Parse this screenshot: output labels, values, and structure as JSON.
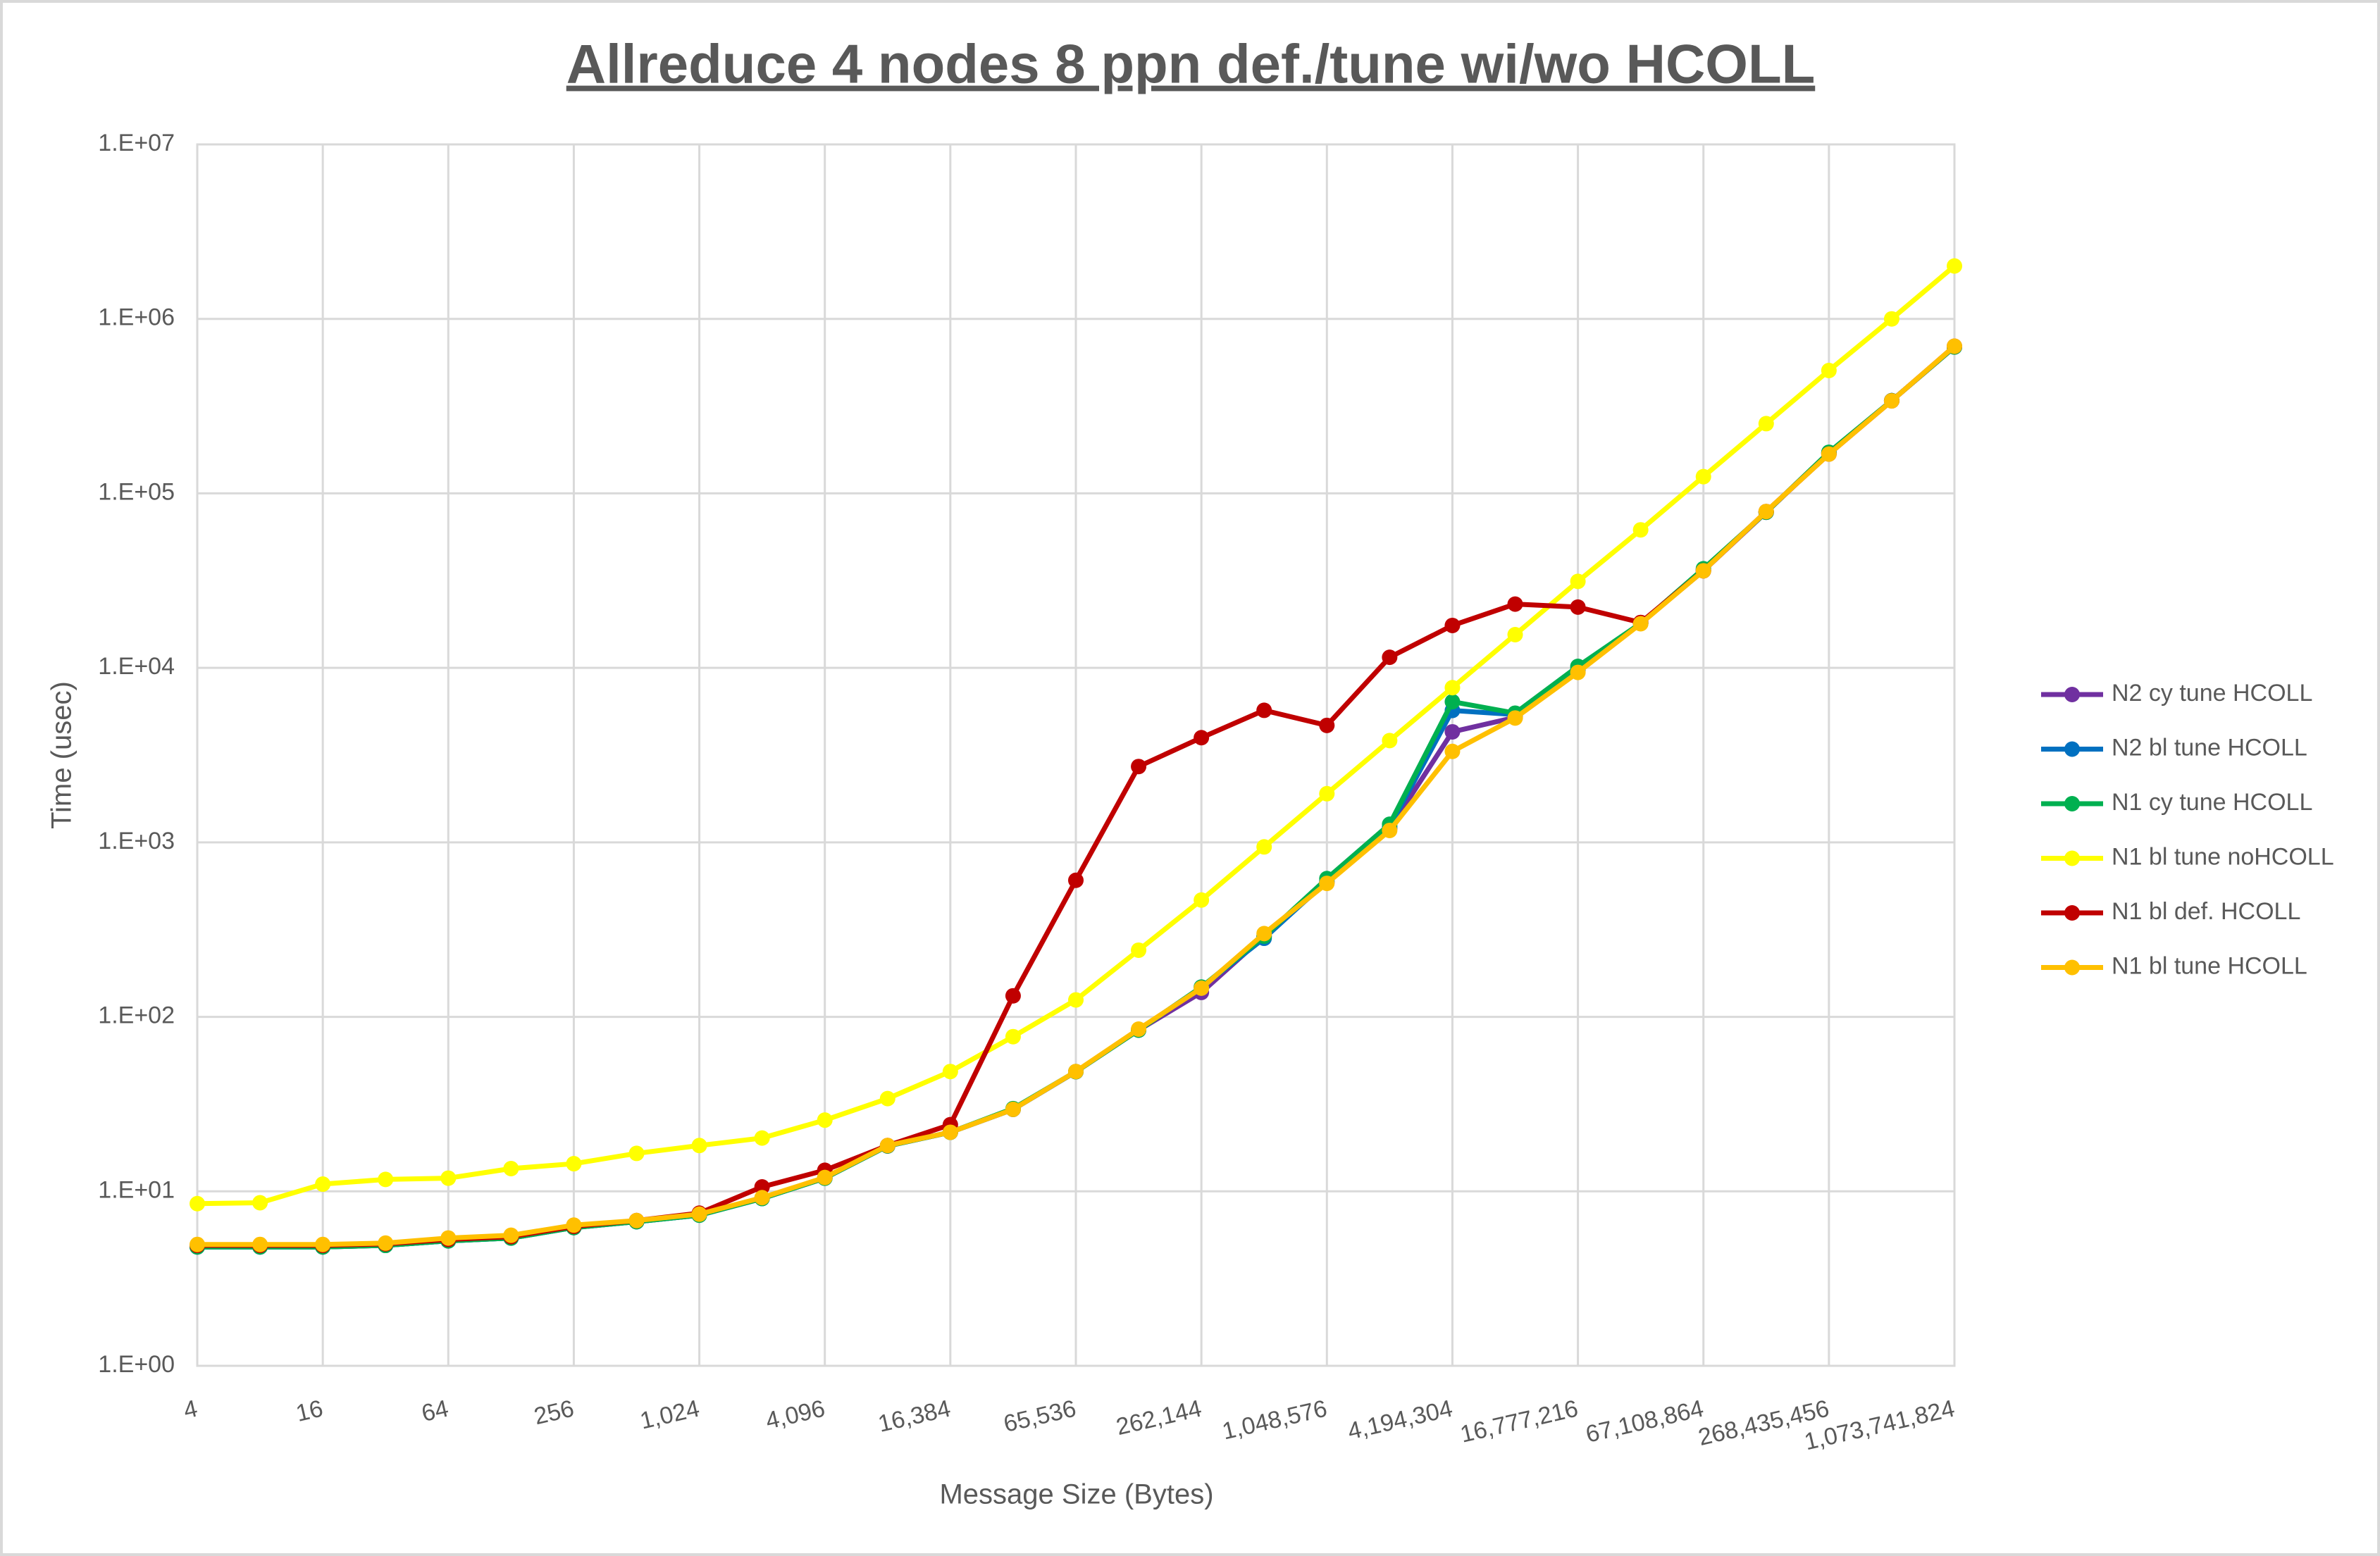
{
  "chart_data": {
    "type": "line",
    "title": "Allreduce 4 nodes 8 ppn def./tune wi/wo HCOLL",
    "x_label": "Message Size (Bytes)",
    "y_label": "Time (usec)",
    "categories": [
      "4",
      null,
      "16",
      null,
      "64",
      null,
      "256",
      null,
      "1,024",
      null,
      "4,096",
      null,
      "16,384",
      null,
      "65,536",
      null,
      "262,144",
      null,
      "1,048,576",
      null,
      "4,194,304",
      null,
      "16,777,216",
      null,
      "67,108,864",
      null,
      "268,435,456",
      null,
      "1,073,741,824"
    ],
    "y_scale": "log",
    "ylim": [
      1,
      10000000
    ],
    "yticks": [
      {
        "value": 1,
        "label": "1.E+00"
      },
      {
        "value": 10,
        "label": "1.E+01"
      },
      {
        "value": 100,
        "label": "1.E+02"
      },
      {
        "value": 1000,
        "label": "1.E+03"
      },
      {
        "value": 10000,
        "label": "1.E+04"
      },
      {
        "value": 100000,
        "label": "1.E+05"
      },
      {
        "value": 1000000,
        "label": "1.E+06"
      },
      {
        "value": 10000000,
        "label": "1.E+07"
      }
    ],
    "grid": true,
    "legend": "right",
    "series": [
      {
        "name": "N2 cy tune HCOLL",
        "color": "#7030a0",
        "values": [
          4.8,
          4.8,
          4.8,
          4.9,
          5.2,
          5.4,
          6.2,
          6.7,
          7.3,
          9.1,
          11.9,
          18.2,
          21.8,
          29.5,
          48.5,
          84,
          138,
          290,
          590,
          1200,
          4300,
          5200,
          9600,
          18000,
          36000,
          78000,
          170000,
          340000,
          690000
        ]
      },
      {
        "name": "N2 bl tune HCOLL",
        "color": "#0070c0",
        "values": [
          4.8,
          4.8,
          4.8,
          4.9,
          5.2,
          5.4,
          6.2,
          6.7,
          7.3,
          9.1,
          11.9,
          18.2,
          21.8,
          29.5,
          48.5,
          84,
          148,
          282,
          600,
          1230,
          5700,
          5400,
          9800,
          18000,
          36500,
          78000,
          171000,
          340000,
          690000
        ]
      },
      {
        "name": "N1 cy tune HCOLL",
        "color": "#00b050",
        "values": [
          4.8,
          4.8,
          4.8,
          4.9,
          5.2,
          5.4,
          6.2,
          6.7,
          7.3,
          9.1,
          11.9,
          18.2,
          21.8,
          29.8,
          48.5,
          84,
          148,
          290,
          620,
          1270,
          6400,
          5500,
          10200,
          18000,
          37000,
          78000,
          172000,
          340000,
          690000
        ]
      },
      {
        "name": "N1 bl tune noHCOLL",
        "color": "#ffff00",
        "values": [
          8.5,
          8.6,
          11,
          11.7,
          11.9,
          13.5,
          14.4,
          16.5,
          18.3,
          20.2,
          25.6,
          34,
          48.6,
          77,
          125,
          241,
          467,
          942,
          1900,
          3830,
          7700,
          15500,
          31300,
          61800,
          124700,
          251000,
          506000,
          1000000,
          2010000
        ]
      },
      {
        "name": "N1 bl def. HCOLL",
        "color": "#c00000",
        "values": [
          4.9,
          4.9,
          4.9,
          5,
          5.3,
          5.5,
          6.3,
          6.8,
          7.5,
          10.6,
          13.2,
          18.3,
          24.1,
          132,
          606,
          2720,
          3980,
          5710,
          4680,
          11500,
          17500,
          23200,
          22300,
          18200,
          36000,
          78700,
          168000,
          339000,
          697000
        ]
      },
      {
        "name": "N1 bl tune HCOLL",
        "color": "#ffc000",
        "values": [
          4.96,
          4.96,
          4.96,
          5.05,
          5.4,
          5.6,
          6.4,
          6.8,
          7.4,
          9.2,
          12,
          18.3,
          21.8,
          29.5,
          48.6,
          85,
          146,
          300,
          582,
          1170,
          3320,
          5160,
          9420,
          17900,
          36000,
          78700,
          168000,
          339000,
          697000
        ]
      }
    ]
  }
}
